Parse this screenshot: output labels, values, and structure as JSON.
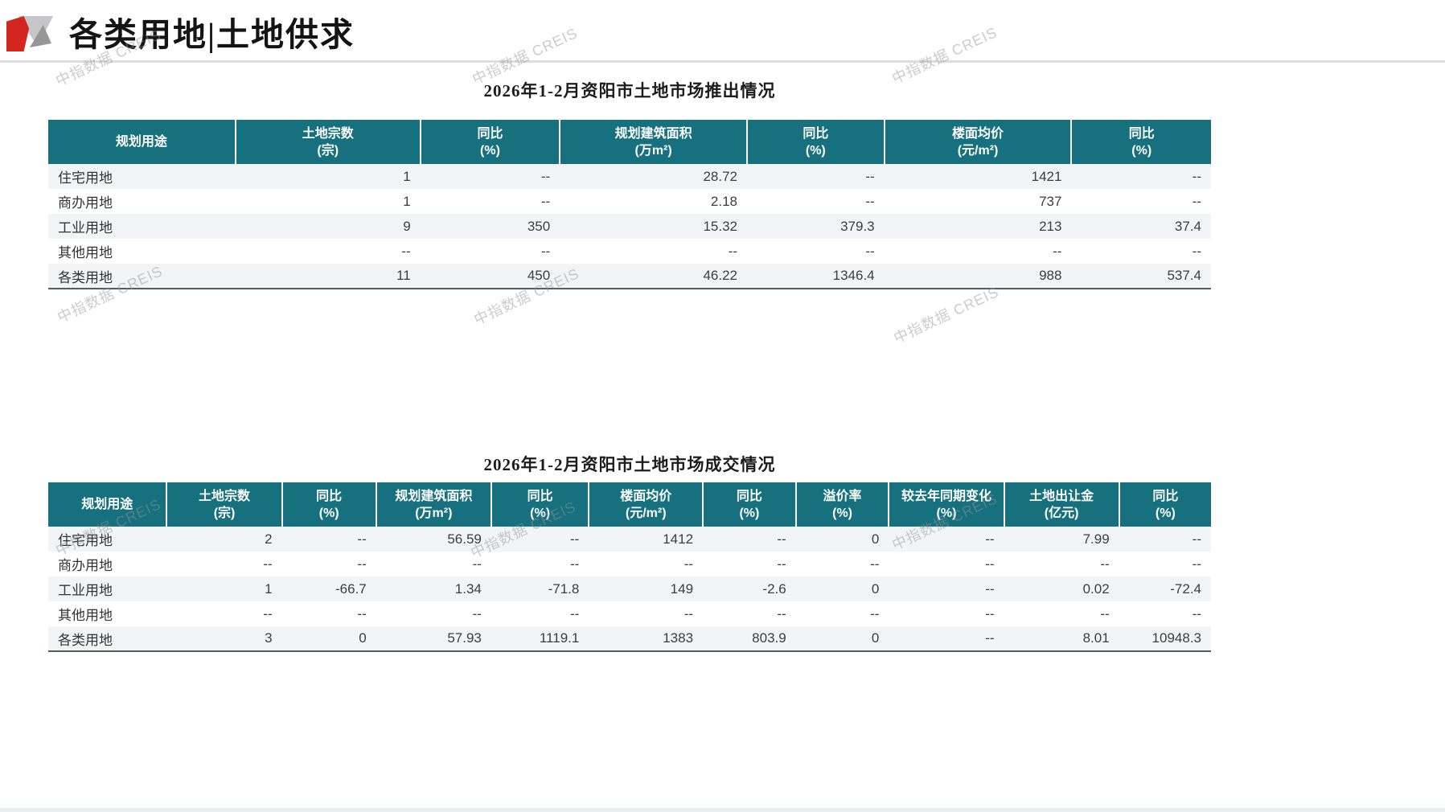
{
  "page": {
    "header_title": "各类用地|土地供求",
    "watermark": "中指数据 CREIS"
  },
  "colors": {
    "table_header_bg": "#17707E",
    "row_stripe_bg": "#F3F4F6",
    "logo_red": "#D3261F",
    "logo_gray": "#C6C6C8",
    "logo_dark_gray": "#97979A"
  },
  "tables": [
    {
      "title": "2026年1-2月资阳市土地市场推出情况",
      "columns": [
        [
          "规划用途"
        ],
        [
          "土地宗数",
          "(宗)"
        ],
        [
          "同比",
          "(%)"
        ],
        [
          "规划建筑面积",
          "(万m²)"
        ],
        [
          "同比",
          "(%)"
        ],
        [
          "楼面均价",
          "(元/m²)"
        ],
        [
          "同比",
          "(%)"
        ]
      ],
      "rows": [
        [
          "住宅用地",
          "1",
          "--",
          "28.72",
          "--",
          "1421",
          "--"
        ],
        [
          "商办用地",
          "1",
          "--",
          "2.18",
          "--",
          "737",
          "--"
        ],
        [
          "工业用地",
          "9",
          "350",
          "15.32",
          "379.3",
          "213",
          "37.4"
        ],
        [
          "其他用地",
          "--",
          "--",
          "--",
          "--",
          "--",
          "--"
        ],
        [
          "各类用地",
          "11",
          "450",
          "46.22",
          "1346.4",
          "988",
          "537.4"
        ]
      ]
    },
    {
      "title": "2026年1-2月资阳市土地市场成交情况",
      "columns": [
        [
          "规划用途"
        ],
        [
          "土地宗数",
          "(宗)"
        ],
        [
          "同比",
          "(%)"
        ],
        [
          "规划建筑面积",
          "(万m²)"
        ],
        [
          "同比",
          "(%)"
        ],
        [
          "楼面均价",
          "(元/m²)"
        ],
        [
          "同比",
          "(%)"
        ],
        [
          "溢价率",
          "(%)"
        ],
        [
          "较去年同期变化",
          "(%)"
        ],
        [
          "土地出让金",
          "(亿元)"
        ],
        [
          "同比",
          "(%)"
        ]
      ],
      "rows": [
        [
          "住宅用地",
          "2",
          "--",
          "56.59",
          "--",
          "1412",
          "--",
          "0",
          "--",
          "7.99",
          "--"
        ],
        [
          "商办用地",
          "--",
          "--",
          "--",
          "--",
          "--",
          "--",
          "--",
          "--",
          "--",
          "--"
        ],
        [
          "工业用地",
          "1",
          "-66.7",
          "1.34",
          "-71.8",
          "149",
          "-2.6",
          "0",
          "--",
          "0.02",
          "-72.4"
        ],
        [
          "其他用地",
          "--",
          "--",
          "--",
          "--",
          "--",
          "--",
          "--",
          "--",
          "--",
          "--"
        ],
        [
          "各类用地",
          "3",
          "0",
          "57.93",
          "1119.1",
          "1383",
          "803.9",
          "0",
          "--",
          "8.01",
          "10948.3"
        ]
      ]
    }
  ]
}
